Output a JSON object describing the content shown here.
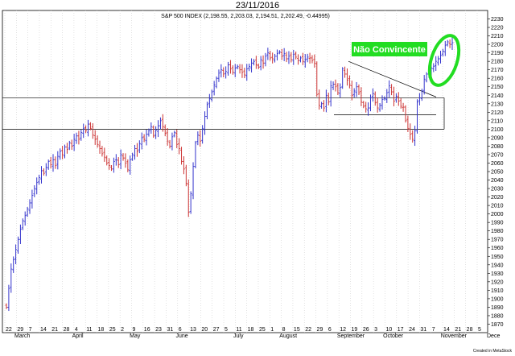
{
  "header": {
    "date": "23/11/2016"
  },
  "footer": {
    "credit": "Created in MetaStock"
  },
  "colors": {
    "up": "#3333cc",
    "down": "#cc3333",
    "grid": "#cfcfcf",
    "annotation_green": "#22dd22",
    "zone": "#000000"
  },
  "chart_data": {
    "type": "ohlc",
    "title": "S&P 500 INDEX (2,198.55, 2,203.03, 2,194.51, 2,202.49, -0.44995)",
    "ylim": [
      1860,
      2240
    ],
    "y_ticks": [
      1870,
      1880,
      1890,
      1900,
      1910,
      1920,
      1930,
      1940,
      1950,
      1960,
      1970,
      1980,
      1990,
      2000,
      2010,
      2020,
      2030,
      2040,
      2050,
      2060,
      2070,
      2080,
      2090,
      2100,
      2110,
      2120,
      2130,
      2140,
      2150,
      2160,
      2170,
      2180,
      2190,
      2200,
      2210,
      2220,
      2230
    ],
    "x_tick_labels": [
      "22",
      "29",
      "7",
      "14",
      "21",
      "28",
      "4",
      "11",
      "18",
      "25",
      "2",
      "9",
      "16",
      "23",
      "31",
      "6",
      "13",
      "20",
      "27",
      "5",
      "11",
      "18",
      "25",
      "1",
      "8",
      "15",
      "22",
      "29",
      "6",
      "12",
      "19",
      "26",
      "3",
      "10",
      "17",
      "24",
      "31",
      "7",
      "14",
      "21",
      "28",
      "5"
    ],
    "month_labels": [
      "March",
      "April",
      "May",
      "June",
      "July",
      "August",
      "September",
      "October",
      "November",
      "Dece"
    ],
    "grid": "vertical",
    "annotations": {
      "label": "Não Convincente"
    },
    "support_zone": {
      "top": 2137,
      "bottom": 2100
    },
    "trendline": {
      "from": 2180,
      "to": 2138
    },
    "triangle_base": 2117,
    "prices": [
      1890,
      1912,
      1935,
      1946,
      1958,
      1970,
      1982,
      1992,
      1998,
      2006,
      2013,
      2022,
      2030,
      2037,
      2043,
      2051,
      2048,
      2055,
      2062,
      2058,
      2064,
      2057,
      2068,
      2074,
      2070,
      2079,
      2076,
      2084,
      2080,
      2088,
      2092,
      2088,
      2096,
      2101,
      2098,
      2106,
      2101,
      2093,
      2088,
      2082,
      2077,
      2071,
      2067,
      2060,
      2057,
      2053,
      2062,
      2064,
      2058,
      2070,
      2066,
      2060,
      2052,
      2064,
      2070,
      2077,
      2074,
      2083,
      2090,
      2088,
      2094,
      2098,
      2103,
      2092,
      2099,
      2104,
      2110,
      2103,
      2095,
      2086,
      2080,
      2091,
      2096,
      2082,
      2077,
      2062,
      2053,
      2036,
      2002,
      2024,
      2056,
      2084,
      2093,
      2086,
      2101,
      2115,
      2129,
      2136,
      2144,
      2152,
      2160,
      2166,
      2170,
      2165,
      2168,
      2176,
      2171,
      2167,
      2172,
      2174,
      2170,
      2167,
      2164,
      2171,
      2174,
      2178,
      2180,
      2176,
      2173,
      2182,
      2178,
      2186,
      2190,
      2184,
      2183,
      2186,
      2189,
      2191,
      2186,
      2189,
      2183,
      2186,
      2182,
      2188,
      2185,
      2181,
      2184,
      2180,
      2182,
      2185,
      2184,
      2181,
      2178,
      2141,
      2128,
      2130,
      2125,
      2140,
      2132,
      2151,
      2153,
      2150,
      2143,
      2149,
      2171,
      2165,
      2158,
      2152,
      2140,
      2145,
      2150,
      2143,
      2132,
      2127,
      2124,
      2125,
      2137,
      2142,
      2131,
      2125,
      2128,
      2135,
      2136,
      2143,
      2151,
      2144,
      2133,
      2139,
      2133,
      2127,
      2126,
      2110,
      2101,
      2094,
      2088,
      2098,
      2132,
      2137,
      2145,
      2159,
      2165,
      2168,
      2172,
      2174,
      2180,
      2183,
      2187,
      2192,
      2199,
      2203,
      2200,
      2202
    ]
  }
}
